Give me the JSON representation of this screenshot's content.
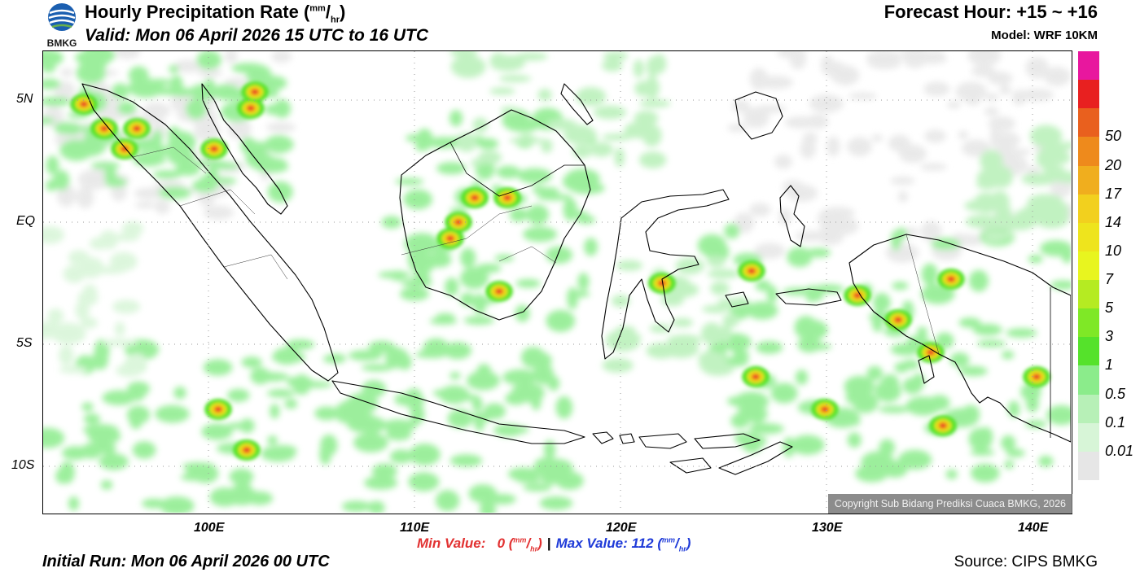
{
  "header": {
    "logo_text": "BMKG",
    "title_main": "Hourly Precipitation Rate (",
    "title_unit_num": "mm",
    "title_unit_sep": "/",
    "title_unit_den": "hr",
    "title_close": ")",
    "valid": "Valid: Mon 06 April 2026 15 UTC to 16 UTC",
    "forecast_hour": "Forecast Hour: +15 ~ +16",
    "model": "Model: WRF 10KM"
  },
  "axes": {
    "lat_labels": [
      "5N",
      "EQ",
      "5S",
      "10S"
    ],
    "lon_labels": [
      "100E",
      "110E",
      "120E",
      "130E",
      "140E"
    ]
  },
  "legend": {
    "colors": [
      "#e8179e",
      "#e82020",
      "#e9601e",
      "#ee8a1c",
      "#f0ae1e",
      "#f2d01e",
      "#eee41d",
      "#e8f51f",
      "#b5eb22",
      "#7fe826",
      "#55e22b",
      "#8bec8b",
      "#b7f0b7",
      "#d7f5d7",
      "#e6e6e6"
    ],
    "labels": [
      "50",
      "20",
      "17",
      "14",
      "10",
      "7",
      "5",
      "3",
      "1",
      "0.5",
      "0.1",
      "0.01"
    ]
  },
  "stats": {
    "min_label": "Min Value:",
    "min_value": "0",
    "max_label": "Max Value: 112",
    "unit_num": "mm",
    "unit_den": "hr",
    "separator": "|"
  },
  "footer": {
    "initial_run": "Initial Run: Mon 06 April 2026 00 UTC",
    "source": "Source: CIPS BMKG",
    "copyright": "Copyright Sub Bidang Prediksi Cuaca BMKG, 2026"
  }
}
